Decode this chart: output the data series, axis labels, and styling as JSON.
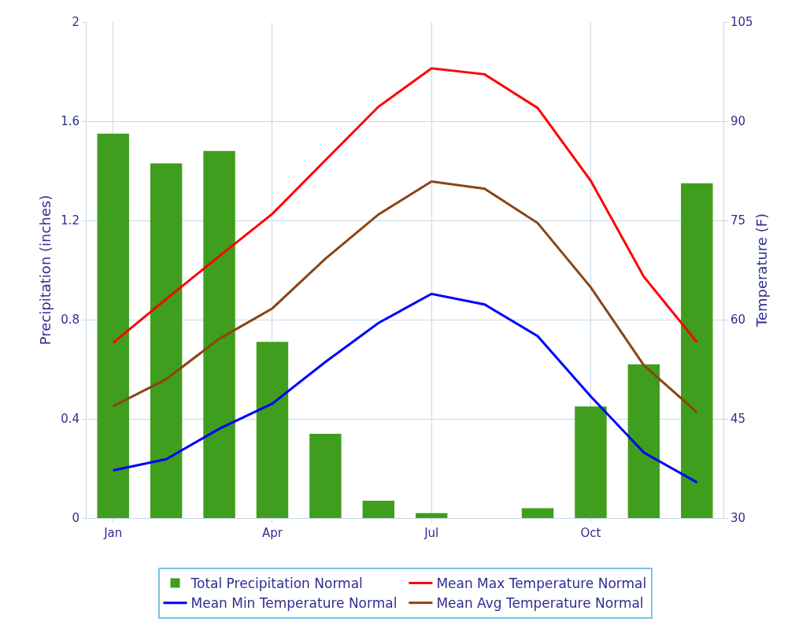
{
  "chart_data": {
    "type": "bar",
    "ylabel": "Precipitation (inches)",
    "y2label": "Temperature (F)",
    "categories": [
      "Jan",
      null,
      null,
      "Apr",
      null,
      null,
      "Jul",
      null,
      null,
      "Oct",
      null,
      null
    ],
    "series": [
      {
        "name": "Total Precipitation Normal",
        "color": "#3f9e1d",
        "values": [
          1.55,
          1.43,
          1.48,
          0.71,
          0.34,
          0.07,
          0.02,
          0,
          0.04,
          0.45,
          0.62,
          1.35
        ]
      },
      {
        "name": "Mean Max Temperature Normal",
        "type": "line",
        "axis": "y2",
        "color": "#ff0000",
        "values": [
          56.5,
          63.1,
          69.6,
          76,
          84.1,
          92.2,
          98,
          97.1,
          92,
          81,
          66.5,
          56.6
        ]
      },
      {
        "name": "Mean Min Temperature Normal",
        "type": "line",
        "axis": "y2",
        "color": "#0000ff",
        "values": [
          37.2,
          38.9,
          43.5,
          47.3,
          53.6,
          59.5,
          63.9,
          62.3,
          57.5,
          48.4,
          39.9,
          35.4
        ]
      },
      {
        "name": "Mean Avg Temperature Normal",
        "type": "line",
        "axis": "y2",
        "color": "#8b4513",
        "values": [
          46.9,
          51,
          57.1,
          61.7,
          69.2,
          75.9,
          80.9,
          79.8,
          74.6,
          64.9,
          53.1,
          46
        ]
      }
    ],
    "ylim": [
      0,
      2
    ],
    "yticks": [
      0,
      0.4,
      0.8,
      1.2,
      1.6,
      2
    ],
    "y2lim": [
      30,
      105
    ],
    "y2ticks": [
      30,
      45,
      60,
      75,
      90,
      105
    ],
    "grid": true,
    "legend": "bottom",
    "marker": "none",
    "line_style": "solid"
  }
}
